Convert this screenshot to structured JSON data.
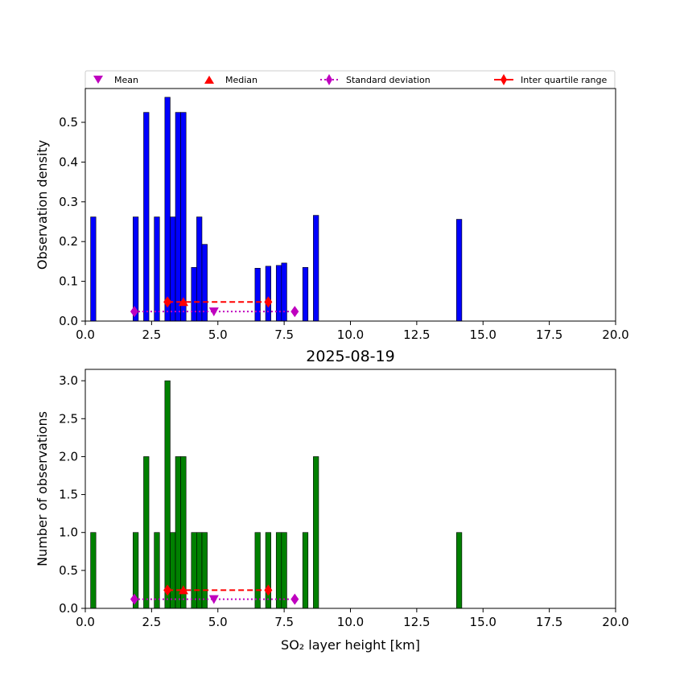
{
  "chart_data": [
    {
      "type": "bar",
      "title": "",
      "xlabel": "",
      "ylabel": "Observation density",
      "xlim": [
        0,
        20
      ],
      "ylim": [
        0,
        0.585
      ],
      "xticks": [
        "0.0",
        "2.5",
        "5.0",
        "7.5",
        "10.0",
        "12.5",
        "15.0",
        "17.5",
        "20.0"
      ],
      "yticks": [
        "0.0",
        "0.1",
        "0.2",
        "0.3",
        "0.4",
        "0.5"
      ],
      "bar_width": 0.2,
      "bar_color": "#0000ff",
      "bins": [
        {
          "x": 0.3,
          "value": 0.262
        },
        {
          "x": 1.9,
          "value": 0.262
        },
        {
          "x": 2.3,
          "value": 0.525
        },
        {
          "x": 2.7,
          "value": 0.262
        },
        {
          "x": 3.1,
          "value": 0.563
        },
        {
          "x": 3.3,
          "value": 0.262
        },
        {
          "x": 3.5,
          "value": 0.525
        },
        {
          "x": 3.7,
          "value": 0.525
        },
        {
          "x": 4.1,
          "value": 0.135
        },
        {
          "x": 4.3,
          "value": 0.262
        },
        {
          "x": 4.5,
          "value": 0.193
        },
        {
          "x": 6.5,
          "value": 0.133
        },
        {
          "x": 6.9,
          "value": 0.138
        },
        {
          "x": 7.3,
          "value": 0.14
        },
        {
          "x": 7.5,
          "value": 0.146
        },
        {
          "x": 8.3,
          "value": 0.135
        },
        {
          "x": 8.7,
          "value": 0.266
        },
        {
          "x": 14.1,
          "value": 0.256
        }
      ],
      "stats": {
        "mean": {
          "x": 4.85,
          "y": 0.024
        },
        "median": {
          "x": 3.7,
          "y": 0.048
        },
        "std_range": {
          "x": [
            1.85,
            7.9
          ],
          "y": 0.024
        },
        "iqr": {
          "x": [
            3.1,
            6.9
          ],
          "y": 0.048
        }
      },
      "legend": {
        "position": "top",
        "entries": [
          {
            "label": "Mean",
            "marker": "triangle-down",
            "color": "#bf00bf"
          },
          {
            "label": "Median",
            "marker": "triangle-up",
            "color": "#ff0000"
          },
          {
            "label": "Standard deviation",
            "marker": "diamond-dotted",
            "color": "#bf00bf"
          },
          {
            "label": "Inter quartile range",
            "marker": "diamond-dashed",
            "color": "#ff0000"
          }
        ]
      }
    },
    {
      "type": "bar",
      "title": "2025-08-19",
      "xlabel": "SO₂ layer height [km]",
      "ylabel": "Number of observations",
      "xlim": [
        0,
        20
      ],
      "ylim": [
        0,
        3.15
      ],
      "xticks": [
        "0.0",
        "2.5",
        "5.0",
        "7.5",
        "10.0",
        "12.5",
        "15.0",
        "17.5",
        "20.0"
      ],
      "yticks": [
        "0.0",
        "0.5",
        "1.0",
        "1.5",
        "2.0",
        "2.5",
        "3.0"
      ],
      "bar_width": 0.2,
      "bar_color": "#008000",
      "bins": [
        {
          "x": 0.3,
          "value": 1
        },
        {
          "x": 1.9,
          "value": 1
        },
        {
          "x": 2.3,
          "value": 2
        },
        {
          "x": 2.7,
          "value": 1
        },
        {
          "x": 3.1,
          "value": 3
        },
        {
          "x": 3.3,
          "value": 1
        },
        {
          "x": 3.5,
          "value": 2
        },
        {
          "x": 3.7,
          "value": 2
        },
        {
          "x": 4.1,
          "value": 1
        },
        {
          "x": 4.3,
          "value": 1
        },
        {
          "x": 4.5,
          "value": 1
        },
        {
          "x": 6.5,
          "value": 1
        },
        {
          "x": 6.9,
          "value": 1
        },
        {
          "x": 7.3,
          "value": 1
        },
        {
          "x": 7.5,
          "value": 1
        },
        {
          "x": 8.3,
          "value": 1
        },
        {
          "x": 8.7,
          "value": 2
        },
        {
          "x": 14.1,
          "value": 1
        }
      ],
      "stats": {
        "mean": {
          "x": 4.85,
          "y": 0.12
        },
        "median": {
          "x": 3.7,
          "y": 0.24
        },
        "std_range": {
          "x": [
            1.85,
            7.9
          ],
          "y": 0.12
        },
        "iqr": {
          "x": [
            3.1,
            6.9
          ],
          "y": 0.24
        }
      }
    }
  ]
}
